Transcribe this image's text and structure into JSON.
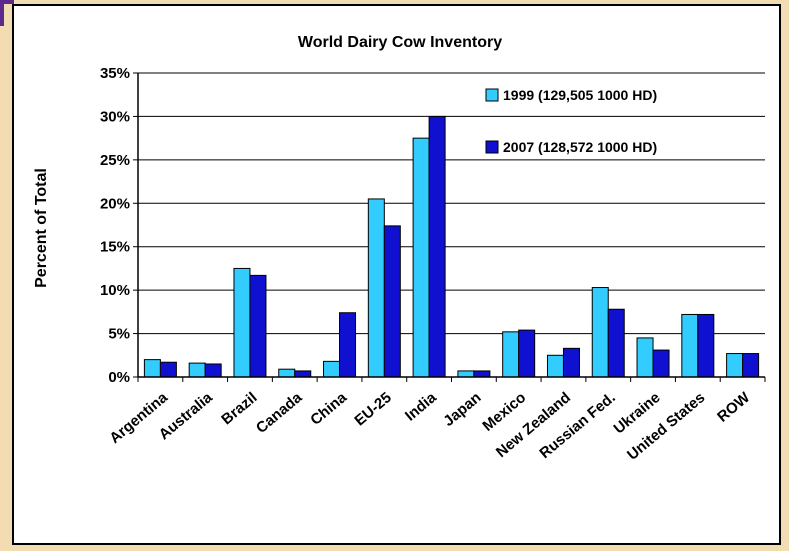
{
  "chart_data": {
    "type": "bar",
    "title": "World Dairy Cow Inventory",
    "xlabel": "",
    "ylabel": "Percent of Total",
    "ylim": [
      0,
      35
    ],
    "yticks": [
      "0%",
      "5%",
      "10%",
      "15%",
      "20%",
      "25%",
      "30%",
      "35%"
    ],
    "grid": true,
    "legend_position": "top-right",
    "categories": [
      "Argentina",
      "Australia",
      "Brazil",
      "Canada",
      "China",
      "EU-25",
      "India",
      "Japan",
      "Mexico",
      "New Zealand",
      "Russian Fed.",
      "Ukraine",
      "United States",
      "ROW"
    ],
    "series": [
      {
        "name": "1999 (129,505 1000 HD)",
        "color": "#33ccff",
        "values": [
          2.0,
          1.6,
          12.5,
          0.9,
          1.8,
          20.5,
          27.5,
          0.7,
          5.2,
          2.5,
          10.3,
          4.5,
          7.2,
          2.7
        ]
      },
      {
        "name": "2007 (128,572 1000 HD)",
        "color": "#1010d0",
        "values": [
          1.7,
          1.5,
          11.7,
          0.7,
          7.4,
          17.4,
          30.0,
          0.7,
          5.4,
          3.3,
          7.8,
          3.1,
          7.2,
          2.7
        ]
      }
    ]
  }
}
